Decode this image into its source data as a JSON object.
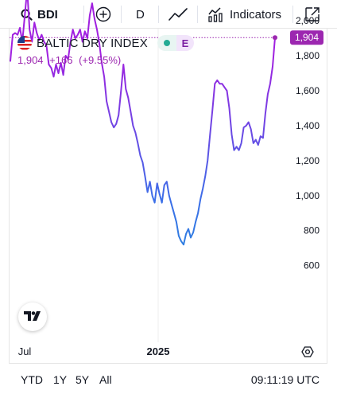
{
  "toolbar": {
    "symbol": "BDI",
    "interval": "D",
    "indicators_label": "Indicators"
  },
  "legend": {
    "series_name": "BALTIC DRY INDEX",
    "badge_letter": "E",
    "price": "1,904",
    "change": "+166",
    "change_pct": "(+9.55%)"
  },
  "last_price_label": "1,904",
  "colors": {
    "accent": "#9c27b0",
    "line_top": "#a020e0",
    "line_mid": "#3b6ee8",
    "line_bottom": "#1e9ad6",
    "badge_green": "#22ab94"
  },
  "chart_data": {
    "type": "line",
    "title": "",
    "xlabel": "",
    "ylabel": "",
    "ylim": [
      600,
      2250
    ],
    "y_ticks": [
      600,
      800,
      1000,
      1200,
      1400,
      1600,
      1800,
      2000,
      2200
    ],
    "y_tick_labels": [
      "600",
      "800",
      "1,000",
      "1,200",
      "1,400",
      "1,600",
      "1,800",
      "2,000",
      "2,200"
    ],
    "x_ticks": [
      "Jul",
      "2025"
    ],
    "series": [
      {
        "values": [
          1770,
          1920,
          1930,
          1920,
          1960,
          1880,
          2030,
          2180,
          1950,
          1880,
          1990,
          1930,
          1890,
          1920,
          1880,
          1860,
          1750,
          1730,
          1680,
          1750,
          1700,
          1760,
          1690,
          1800,
          1780,
          1880,
          1950,
          1900,
          1920,
          1950,
          1880,
          1940,
          1900,
          2030,
          2100,
          2010,
          1950,
          1870,
          1760,
          1680,
          1540,
          1480,
          1420,
          1390,
          1410,
          1460,
          1600,
          1750,
          1610,
          1560,
          1480,
          1400,
          1360,
          1300,
          1230,
          1190,
          1110,
          1020,
          1080,
          1000,
          960,
          1070,
          1010,
          960,
          1060,
          1080,
          1000,
          950,
          900,
          850,
          770,
          740,
          720,
          780,
          810,
          760,
          790,
          850,
          900,
          980,
          1040,
          1110,
          1200,
          1350,
          1490,
          1640,
          1660,
          1640,
          1640,
          1620,
          1600,
          1500,
          1350,
          1260,
          1280,
          1260,
          1300,
          1390,
          1400,
          1420,
          1380,
          1300,
          1320,
          1290,
          1340,
          1330,
          1470,
          1580,
          1640,
          1738,
          1904
        ]
      }
    ],
    "last_value": 1904,
    "grid": false,
    "legend_position": "top-left"
  },
  "bottom": {
    "ranges": [
      "YTD",
      "1Y",
      "5Y",
      "All"
    ],
    "clock": "09:11:19 UTC"
  }
}
